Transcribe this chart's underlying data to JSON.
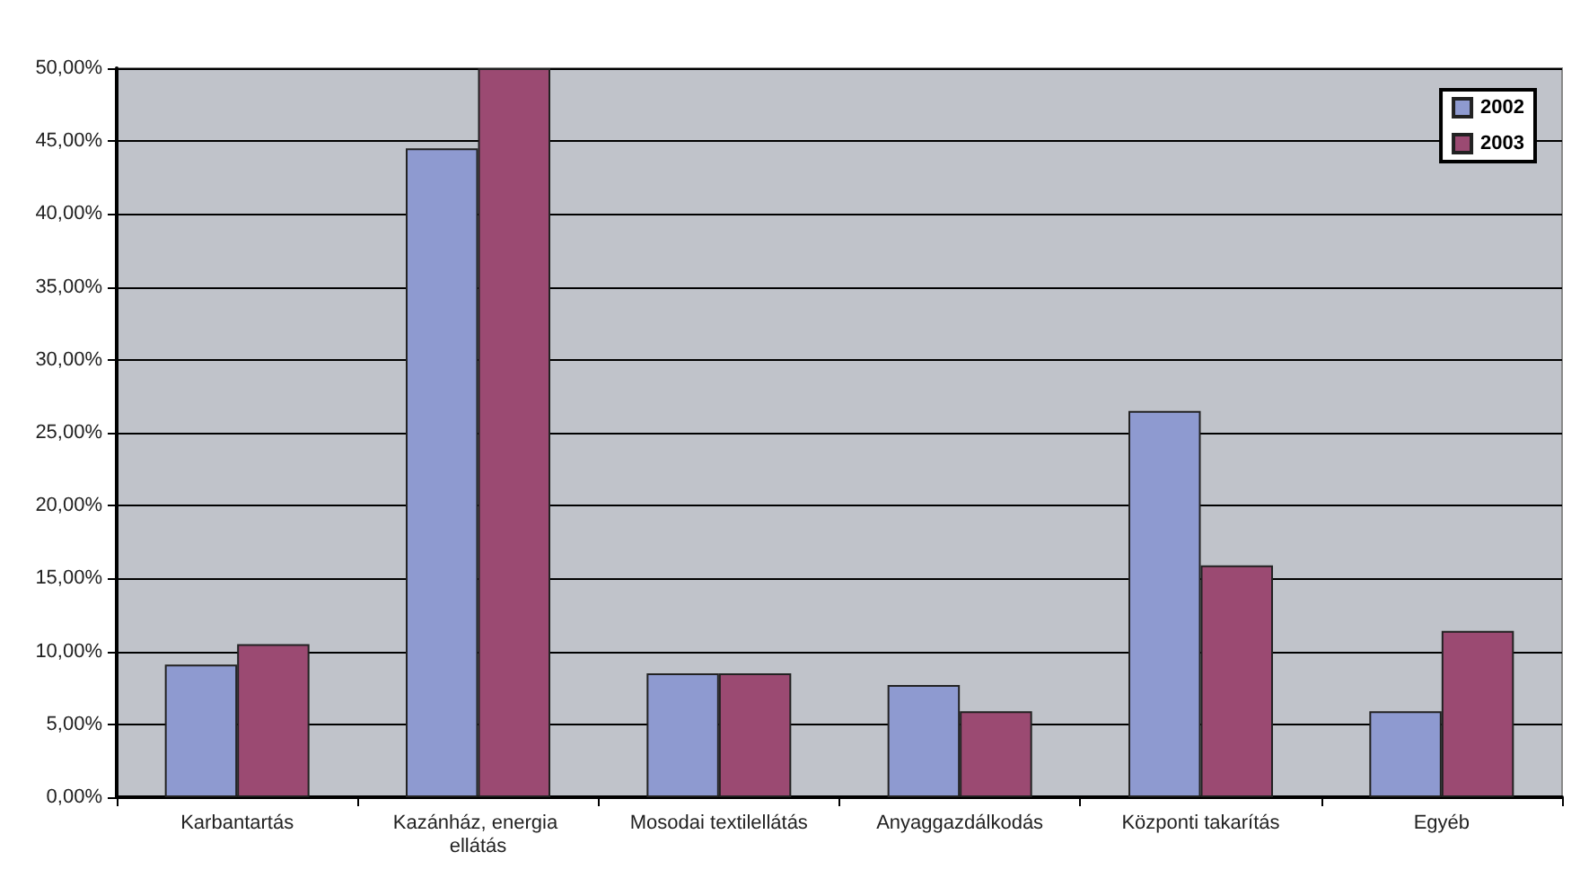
{
  "chart_data": {
    "type": "bar",
    "categories": [
      "Karbantartás",
      "Kazánház, energia ellátás",
      "Mosodai textilellátás",
      "Anyaggazdálkodás",
      "Központi takarítás",
      "Egyéb"
    ],
    "series": [
      {
        "name": "2002",
        "color": "#8e9ad0",
        "values": [
          9.1,
          44.5,
          8.5,
          7.7,
          26.5,
          5.9
        ]
      },
      {
        "name": "2003",
        "color": "#9b4a72",
        "values": [
          10.5,
          50.0,
          8.5,
          5.9,
          15.9,
          11.4
        ]
      }
    ],
    "ylim": [
      0,
      50
    ],
    "yticks": [
      {
        "value": 0,
        "label": "0,00%"
      },
      {
        "value": 5,
        "label": "5,00%"
      },
      {
        "value": 10,
        "label": "10,00%"
      },
      {
        "value": 15,
        "label": "15,00%"
      },
      {
        "value": 20,
        "label": "20,00%"
      },
      {
        "value": 25,
        "label": "25,00%"
      },
      {
        "value": 30,
        "label": "30,00%"
      },
      {
        "value": 35,
        "label": "35,00%"
      },
      {
        "value": 40,
        "label": "40,00%"
      },
      {
        "value": 45,
        "label": "45,00%"
      },
      {
        "value": 50,
        "label": "50,00%"
      }
    ],
    "grid": "y",
    "legend": "top right"
  }
}
